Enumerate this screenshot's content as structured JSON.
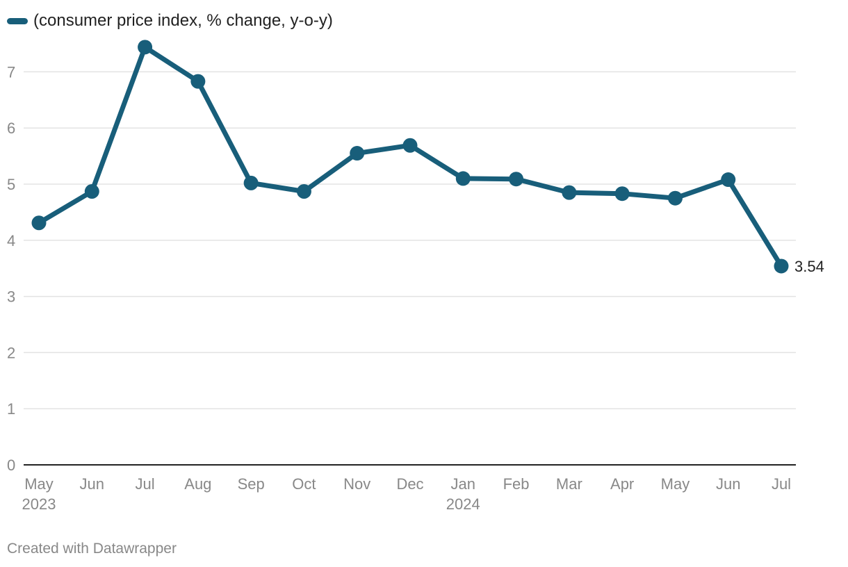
{
  "chart_data": {
    "type": "line",
    "title": "",
    "xlabel": "",
    "ylabel": "",
    "ylim": [
      0,
      7
    ],
    "y_ticks": [
      0,
      1,
      2,
      3,
      4,
      5,
      6,
      7
    ],
    "grid": true,
    "legend": "top-left",
    "categories": [
      "May",
      "Jun",
      "Jul",
      "Aug",
      "Sep",
      "Oct",
      "Nov",
      "Dec",
      "Jan",
      "Feb",
      "Mar",
      "Apr",
      "May",
      "Jun",
      "Jul"
    ],
    "year_labels": [
      {
        "index": 0,
        "label": "2023"
      },
      {
        "index": 8,
        "label": "2024"
      }
    ],
    "series": [
      {
        "name": "(consumer price index, % change, y-o-y)",
        "color": "#185e7a",
        "values": [
          4.31,
          4.87,
          7.44,
          6.83,
          5.02,
          4.87,
          5.55,
          5.69,
          5.1,
          5.09,
          4.85,
          4.83,
          4.75,
          5.08,
          3.54
        ]
      }
    ],
    "annotations": [
      {
        "index": 14,
        "label": "3.54"
      }
    ]
  },
  "footer": {
    "credit": "Created with Datawrapper"
  },
  "colors": {
    "line": "#185e7a",
    "grid": "#e3e3e3",
    "axis": "#222222",
    "tick_text": "#888888",
    "label_text": "#222222"
  }
}
